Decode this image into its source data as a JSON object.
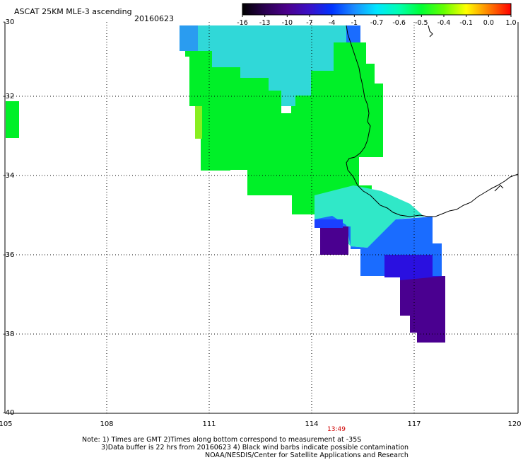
{
  "header": {
    "title": "ASCAT 25KM MLE-3 ascending",
    "date": "20160623"
  },
  "colorbar": {
    "labels": [
      "-16",
      "-13",
      "-10",
      "-7",
      "-4",
      "-1",
      "-0.7",
      "-0.6",
      "-0.5",
      "-0.4",
      "-0.1",
      "0.0",
      "1.0"
    ],
    "colors": [
      "#000000",
      "#2a0050",
      "#4b008c",
      "#3a10c8",
      "#0033ff",
      "#1a8cff",
      "#00e6ff",
      "#00ffb0",
      "#00ff33",
      "#66ff00",
      "#ffff00",
      "#ff8000",
      "#ff0000"
    ]
  },
  "axes": {
    "lat_labels": [
      "-30",
      "-32",
      "-34",
      "-36",
      "-38",
      "-40"
    ],
    "lon_labels": [
      "105",
      "108",
      "111",
      "114",
      "117",
      "120"
    ],
    "lat_range": [
      -40,
      -30
    ],
    "lon_range": [
      105,
      120
    ]
  },
  "time_marker": "13:49",
  "footer": {
    "line1": "Note: 1) Times are GMT 2)Times along bottom correspond to measurement at -35S",
    "line2": "3)Data buffer is 22 hrs from 20160623 4) Black wind barbs indicate possible contamination",
    "line3": "NOAA/NESDIS/Center for Satellite Applications and Research"
  },
  "colors": {
    "green": "#00f028",
    "cyan": "#00e8e0",
    "blue": "#1a6cff",
    "deep_blue": "#2a10e0",
    "purple": "#4a0090",
    "yellow_green": "#88ee20",
    "coast": "#000000"
  }
}
